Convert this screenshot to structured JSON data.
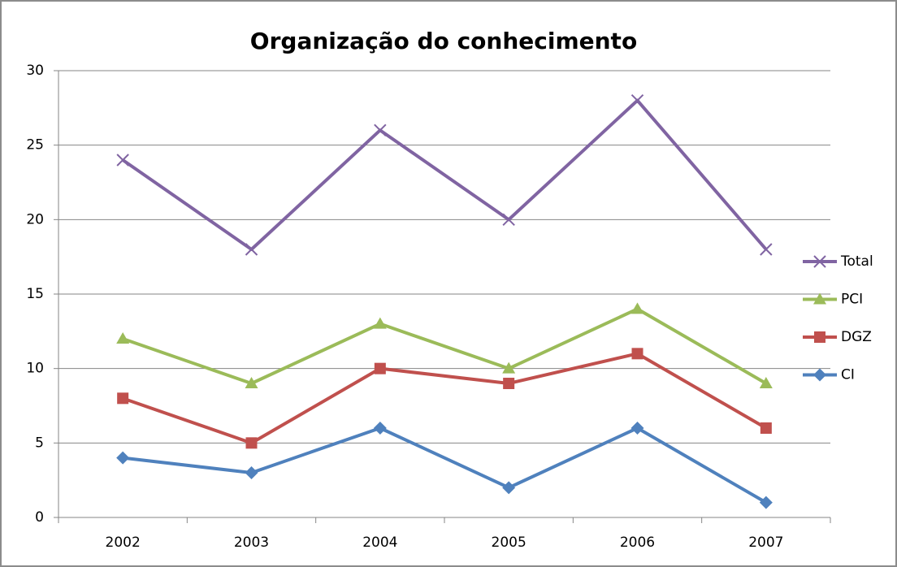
{
  "chart_data": {
    "type": "line",
    "title": "Organização do conhecimento",
    "categories": [
      "2002",
      "2003",
      "2004",
      "2005",
      "2006",
      "2007"
    ],
    "series": [
      {
        "name": "Total",
        "color": "#8064a2",
        "marker": "x",
        "values": [
          24,
          18,
          26,
          20,
          28,
          18
        ]
      },
      {
        "name": "PCI",
        "color": "#9bbb59",
        "marker": "triangle",
        "values": [
          12,
          9,
          13,
          10,
          14,
          9
        ]
      },
      {
        "name": "DGZ",
        "color": "#c0504d",
        "marker": "square",
        "values": [
          8,
          5,
          10,
          9,
          11,
          6
        ]
      },
      {
        "name": "CI",
        "color": "#4f81bd",
        "marker": "diamond",
        "values": [
          4,
          3,
          6,
          2,
          6,
          1
        ]
      }
    ],
    "ylim": [
      0,
      30
    ],
    "yticks": [
      0,
      5,
      10,
      15,
      20,
      25,
      30
    ],
    "grid": true,
    "legend": "right"
  }
}
